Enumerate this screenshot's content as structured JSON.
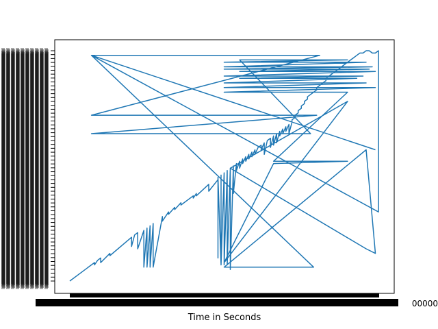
{
  "chart_data": {
    "type": "line",
    "title": "",
    "xlabel": "Time in Seconds",
    "ylabel": "",
    "grid": false,
    "legend": "none",
    "x_tick_label_partial": "00000",
    "x_tick_labels_overlapping": true,
    "y_tick_labels_overlapping": true,
    "xlim": [
      0,
      1
    ],
    "ylim": [
      0,
      1
    ],
    "series": [
      {
        "color": "#1f77b4",
        "x": [
          0.0,
          0.08,
          0.08,
          0.09,
          0.1,
          0.1,
          0.13,
          0.13,
          0.2,
          0.2,
          0.21,
          0.22,
          0.22,
          0.24,
          0.24,
          0.25,
          0.25,
          0.26,
          0.26,
          0.27,
          0.27,
          0.3,
          0.3,
          0.32,
          0.32,
          0.34,
          0.34,
          0.36,
          0.36,
          0.4,
          0.4,
          0.41,
          0.41,
          0.45,
          0.45,
          0.48,
          0.48,
          0.48,
          0.48,
          0.49,
          0.49,
          0.49,
          0.5,
          0.5,
          0.51,
          0.51,
          0.52,
          0.52,
          0.53,
          0.53,
          0.54,
          0.54,
          0.55,
          0.55,
          0.56,
          0.56,
          0.57,
          0.57,
          0.58,
          0.58,
          0.59,
          0.59,
          0.6,
          0.6,
          0.61,
          0.62,
          0.62,
          0.63,
          0.63,
          0.64,
          0.65,
          0.65,
          0.66,
          0.66,
          0.67,
          0.67,
          0.68,
          0.68,
          0.69,
          0.69,
          0.7,
          0.7,
          0.71,
          0.71,
          0.72,
          0.72,
          0.73,
          0.73,
          0.74,
          0.74,
          0.75,
          0.75,
          0.76,
          0.76,
          0.77,
          0.77,
          0.78,
          0.79,
          0.8,
          0.8,
          0.81,
          0.82,
          0.83,
          0.83,
          0.84,
          0.85,
          0.86,
          0.87,
          0.88,
          0.89,
          0.9,
          0.91,
          0.92,
          0.93,
          0.94,
          0.95,
          0.96,
          0.97,
          0.98,
          0.99,
          1.0,
          1.0,
          0.07,
          0.07,
          0.8,
          0.81,
          0.07,
          0.07,
          0.79,
          0.8,
          0.07,
          0.07,
          0.77,
          0.78,
          0.55,
          0.55,
          0.9,
          0.5,
          0.5,
          0.96,
          0.5,
          0.5,
          0.98,
          0.5,
          0.5,
          0.97,
          0.55,
          0.55,
          0.99,
          0.5,
          0.5,
          0.95,
          0.55,
          0.55,
          0.93,
          0.5,
          0.5,
          0.96,
          0.5,
          0.5,
          0.99,
          0.5,
          0.5,
          0.9,
          0.66,
          0.66,
          0.9,
          0.66,
          0.66,
          0.5,
          0.5,
          0.9,
          0.52,
          0.52,
          0.96,
          0.99,
          0.99,
          0.96,
          0.96,
          0.5,
          0.55,
          0.55,
          0.76,
          0.76,
          0.79,
          0.79,
          0.07,
          0.07,
          0.99
        ],
        "y": [
          0.0,
          0.08,
          0.07,
          0.09,
          0.1,
          0.08,
          0.12,
          0.11,
          0.19,
          0.15,
          0.2,
          0.21,
          0.14,
          0.22,
          0.06,
          0.23,
          0.06,
          0.24,
          0.06,
          0.25,
          0.06,
          0.28,
          0.26,
          0.3,
          0.29,
          0.32,
          0.31,
          0.34,
          0.33,
          0.37,
          0.36,
          0.38,
          0.37,
          0.42,
          0.39,
          0.44,
          0.43,
          0.1,
          0.45,
          0.07,
          0.46,
          0.07,
          0.47,
          0.07,
          0.48,
          0.07,
          0.49,
          0.05,
          0.5,
          0.38,
          0.51,
          0.48,
          0.52,
          0.49,
          0.53,
          0.51,
          0.54,
          0.52,
          0.55,
          0.53,
          0.56,
          0.54,
          0.57,
          0.55,
          0.58,
          0.59,
          0.57,
          0.6,
          0.55,
          0.61,
          0.62,
          0.58,
          0.63,
          0.59,
          0.64,
          0.6,
          0.65,
          0.63,
          0.66,
          0.64,
          0.67,
          0.65,
          0.68,
          0.64,
          0.69,
          0.7,
          0.71,
          0.72,
          0.73,
          0.74,
          0.75,
          0.76,
          0.77,
          0.78,
          0.79,
          0.8,
          0.81,
          0.82,
          0.83,
          0.84,
          0.85,
          0.86,
          0.87,
          0.88,
          0.89,
          0.9,
          0.91,
          0.92,
          0.93,
          0.94,
          0.95,
          0.96,
          0.97,
          0.98,
          0.99,
          0.99,
          1.0,
          1.0,
          0.99,
          0.99,
          1.0,
          0.3,
          0.98,
          0.98,
          0.98,
          0.98,
          0.72,
          0.72,
          0.72,
          0.72,
          0.64,
          0.64,
          0.64,
          0.64,
          0.96,
          0.96,
          0.96,
          0.95,
          0.95,
          0.95,
          0.93,
          0.93,
          0.93,
          0.92,
          0.92,
          0.92,
          0.91,
          0.91,
          0.91,
          0.89,
          0.89,
          0.89,
          0.88,
          0.88,
          0.88,
          0.86,
          0.86,
          0.86,
          0.84,
          0.84,
          0.84,
          0.82,
          0.82,
          0.82,
          0.52,
          0.52,
          0.52,
          0.51,
          0.51,
          0.08,
          0.08,
          0.78,
          0.49,
          0.49,
          0.14,
          0.12,
          0.12,
          0.57,
          0.57,
          0.06,
          0.06,
          0.06,
          0.06,
          0.06,
          0.06,
          0.06,
          0.98,
          0.98,
          0.57
        ]
      }
    ]
  }
}
